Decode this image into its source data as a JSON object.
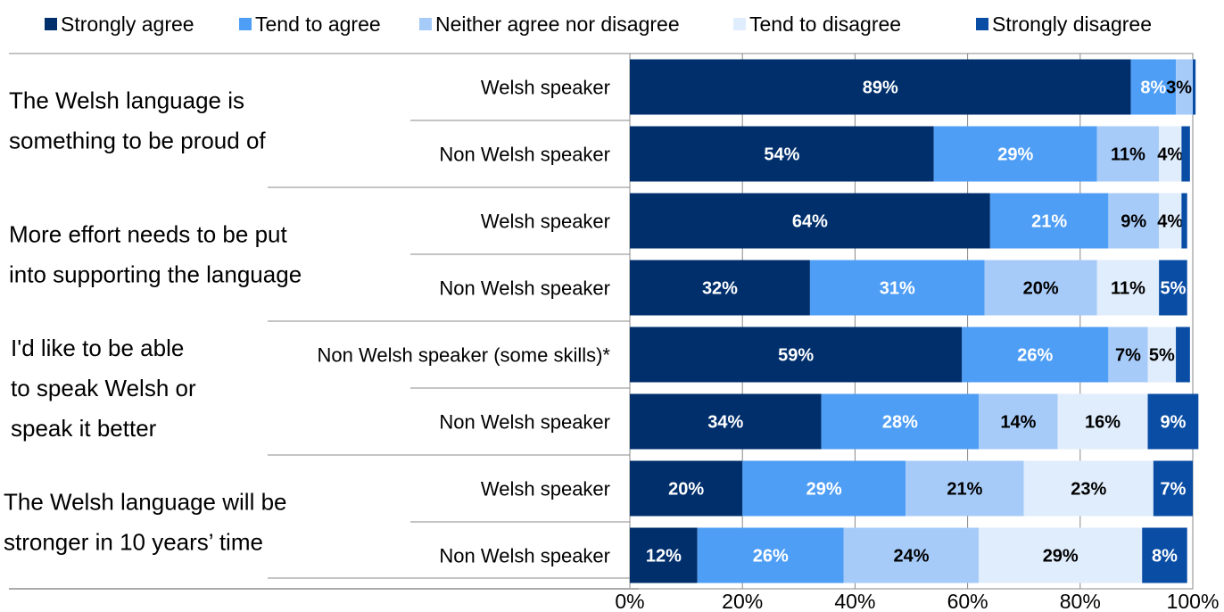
{
  "chart_data": {
    "type": "bar",
    "orientation": "horizontal",
    "stacked": true,
    "legend_position": "top",
    "grid": true,
    "xlim": [
      0,
      100
    ],
    "x_ticks": [
      "0%",
      "20%",
      "40%",
      "60%",
      "80%",
      "100%"
    ],
    "series": [
      {
        "name": "Strongly agree",
        "color": "#002f6c",
        "label_color": "#ffffff"
      },
      {
        "name": "Tend to agree",
        "color": "#4f9ef5",
        "label_color": "#ffffff"
      },
      {
        "name": "Neither agree nor disagree",
        "color": "#a7cbf9",
        "label_color": "#000000"
      },
      {
        "name": "Tend to disagree",
        "color": "#e0edfc",
        "label_color": "#000000"
      },
      {
        "name": "Strongly disagree",
        "color": "#0a4da4",
        "label_color": "#ffffff"
      }
    ],
    "groups": [
      {
        "question": [
          "The Welsh language is",
          "something to be proud of"
        ],
        "bars": [
          {
            "category": "Welsh speaker",
            "values": [
              89,
              8,
              3,
              0,
              0.5
            ],
            "labels": [
              "89%",
              "8%",
              "3%",
              "",
              ""
            ]
          },
          {
            "category": "Non Welsh speaker",
            "values": [
              54,
              29,
              11,
              4,
              1.5
            ],
            "labels": [
              "54%",
              "29%",
              "11%",
              "4%",
              ""
            ]
          }
        ]
      },
      {
        "question": [
          "More effort needs to be put",
          "into supporting the language"
        ],
        "bars": [
          {
            "category": "Welsh speaker",
            "values": [
              64,
              21,
              9,
              4,
              1
            ],
            "labels": [
              "64%",
              "21%",
              "9%",
              "4%",
              ""
            ]
          },
          {
            "category": "Non Welsh speaker",
            "values": [
              32,
              31,
              20,
              11,
              5
            ],
            "labels": [
              "32%",
              "31%",
              "20%",
              "11%",
              "5%"
            ]
          }
        ]
      },
      {
        "question": [
          "I'd like to be able",
          "to speak Welsh or",
          "speak it better"
        ],
        "bars": [
          {
            "category": "Non Welsh speaker (some skills)*",
            "values": [
              59,
              26,
              7,
              5,
              2.5
            ],
            "labels": [
              "59%",
              "26%",
              "7%",
              "5%",
              ""
            ]
          },
          {
            "category": "Non Welsh speaker",
            "values": [
              34,
              28,
              14,
              16,
              9
            ],
            "labels": [
              "34%",
              "28%",
              "14%",
              "16%",
              "9%"
            ]
          }
        ]
      },
      {
        "question": [
          "The Welsh language will be",
          "stronger in 10 years’ time"
        ],
        "bars": [
          {
            "category": "Welsh speaker",
            "values": [
              20,
              29,
              21,
              23,
              7
            ],
            "labels": [
              "20%",
              "29%",
              "21%",
              "23%",
              "7%"
            ]
          },
          {
            "category": "Non Welsh speaker",
            "values": [
              12,
              26,
              24,
              29,
              8
            ],
            "labels": [
              "12%",
              "26%",
              "24%",
              "29%",
              "8%"
            ]
          }
        ]
      }
    ]
  }
}
